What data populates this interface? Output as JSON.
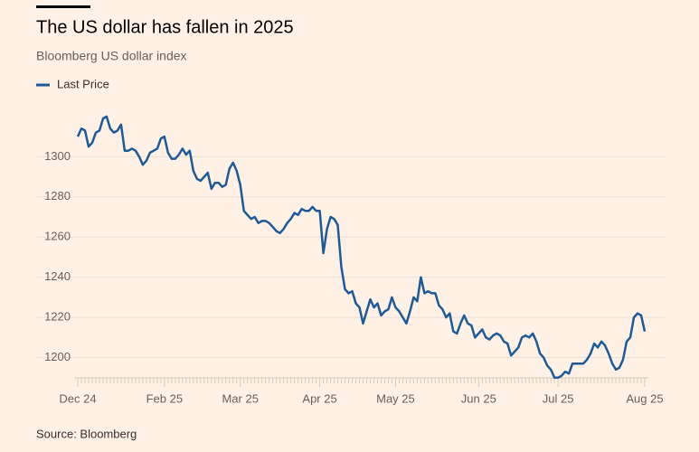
{
  "chart_data": {
    "type": "line",
    "title": "The US dollar has fallen in 2025",
    "subtitle": "Bloomberg US dollar index",
    "source": "Source: Bloomberg",
    "categories": [
      "Dec 24",
      null,
      null,
      null,
      null,
      null,
      null,
      null,
      null,
      null,
      null,
      null,
      null,
      null,
      null,
      null,
      null,
      null,
      null,
      null,
      null,
      null,
      null,
      null,
      "Feb 25",
      null,
      null,
      null,
      null,
      null,
      null,
      null,
      null,
      null,
      null,
      null,
      null,
      null,
      null,
      null,
      null,
      null,
      null,
      null,
      null,
      "Mar 25",
      null,
      null,
      null,
      null,
      null,
      null,
      null,
      null,
      null,
      null,
      null,
      null,
      null,
      null,
      null,
      null,
      null,
      null,
      null,
      null,
      null,
      "Apr 25",
      null,
      null,
      null,
      null,
      null,
      null,
      null,
      null,
      null,
      null,
      null,
      null,
      null,
      null,
      null,
      null,
      null,
      null,
      null,
      null,
      "May 25",
      null,
      null,
      null,
      null,
      null,
      null,
      null,
      null,
      null,
      null,
      null,
      null,
      null,
      null,
      null,
      null,
      null,
      null,
      null,
      null,
      null,
      null,
      "Jun 25",
      null,
      null,
      null,
      null,
      null,
      null,
      null,
      null,
      null,
      null,
      null,
      null,
      null,
      null,
      null,
      null,
      null,
      null,
      null,
      null,
      null,
      "Jul 25",
      null,
      null,
      null,
      null,
      null,
      null,
      null,
      null,
      null,
      null,
      null,
      null,
      null,
      null,
      null,
      null,
      null,
      null,
      null,
      null,
      null,
      null,
      null,
      "Aug 25"
    ],
    "series": [
      {
        "name": "Last Price",
        "color": "#1f5a96",
        "values": [
          1310,
          1314,
          1313,
          1305,
          1307,
          1312,
          1313,
          1319,
          1320,
          1314,
          1312,
          1313,
          1316,
          1303,
          1303,
          1304,
          1303,
          1300,
          1296,
          1298,
          1302,
          1303,
          1304,
          1309,
          1310,
          1302,
          1299,
          1299,
          1301,
          1304,
          1301,
          1303,
          1293,
          1289,
          1288,
          1290,
          1292,
          1284,
          1287,
          1287,
          1285,
          1286,
          1294,
          1297,
          1293,
          1286,
          1273,
          1271,
          1269,
          1270,
          1267,
          1268,
          1268,
          1267,
          1265,
          1263,
          1262,
          1264,
          1267,
          1269,
          1272,
          1271,
          1274,
          1273,
          1273,
          1275,
          1273,
          1273,
          1252,
          1264,
          1270,
          1269,
          1266,
          1245,
          1234,
          1232,
          1233,
          1227,
          1225,
          1217,
          1223,
          1229,
          1225,
          1227,
          1221,
          1223,
          1224,
          1230,
          1225,
          1223,
          1220,
          1217,
          1223,
          1230,
          1228,
          1240,
          1232,
          1233,
          1232,
          1232,
          1226,
          1224,
          1220,
          1222,
          1213,
          1212,
          1217,
          1221,
          1217,
          1216,
          1210,
          1212,
          1214,
          1210,
          1209,
          1211,
          1212,
          1211,
          1208,
          1207,
          1201,
          1203,
          1205,
          1210,
          1211,
          1210,
          1212,
          1208,
          1202,
          1200,
          1196,
          1194,
          1190,
          1190,
          1191,
          1193,
          1192,
          1197,
          1197,
          1197,
          1197,
          1199,
          1202,
          1207,
          1205,
          1208,
          1206,
          1202,
          1197,
          1194,
          1195,
          1199,
          1208,
          1210,
          1220,
          1222,
          1221,
          1213
        ]
      }
    ],
    "ylim": [
      1189,
      1324
    ],
    "yticks": [
      1200,
      1220,
      1240,
      1260,
      1280,
      1300
    ],
    "grid": true
  }
}
